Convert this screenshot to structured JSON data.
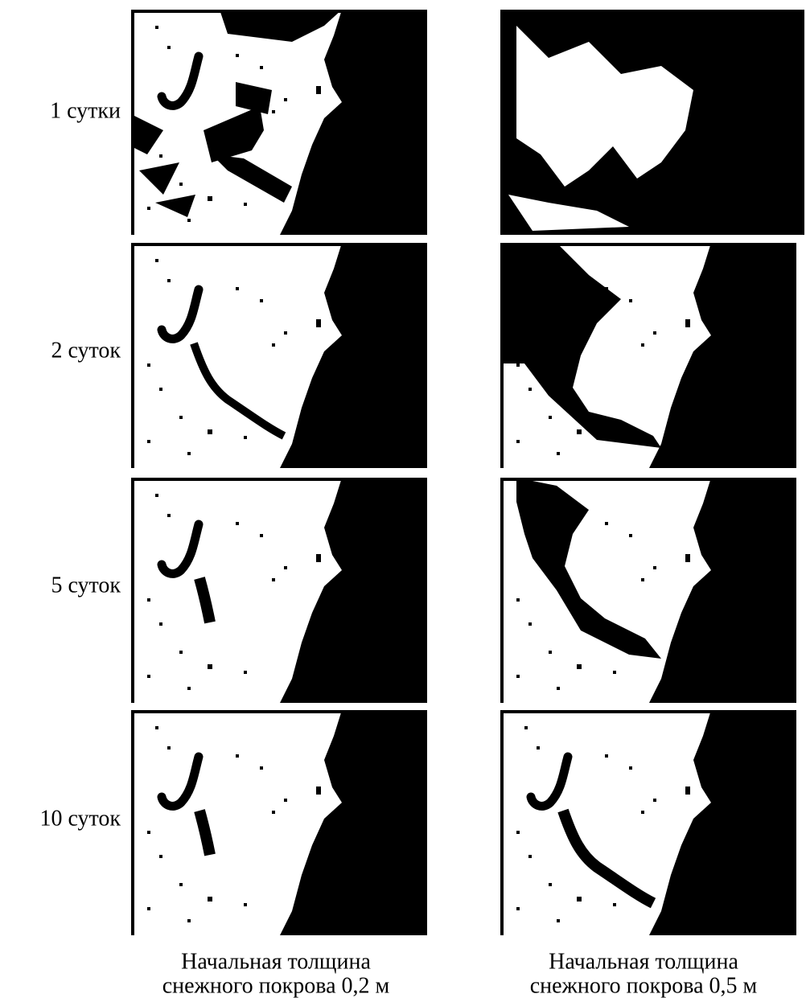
{
  "rows": [
    {
      "label": "1 сутки"
    },
    {
      "label": "2 суток"
    },
    {
      "label": "5 суток"
    },
    {
      "label": "10 суток"
    }
  ],
  "columns": [
    {
      "lines": [
        "Начальная толщина",
        "снежного покрова 0,2 м"
      ]
    },
    {
      "lines": [
        "Начальная толщина",
        "снежного покрова 0,5 м"
      ]
    }
  ]
}
